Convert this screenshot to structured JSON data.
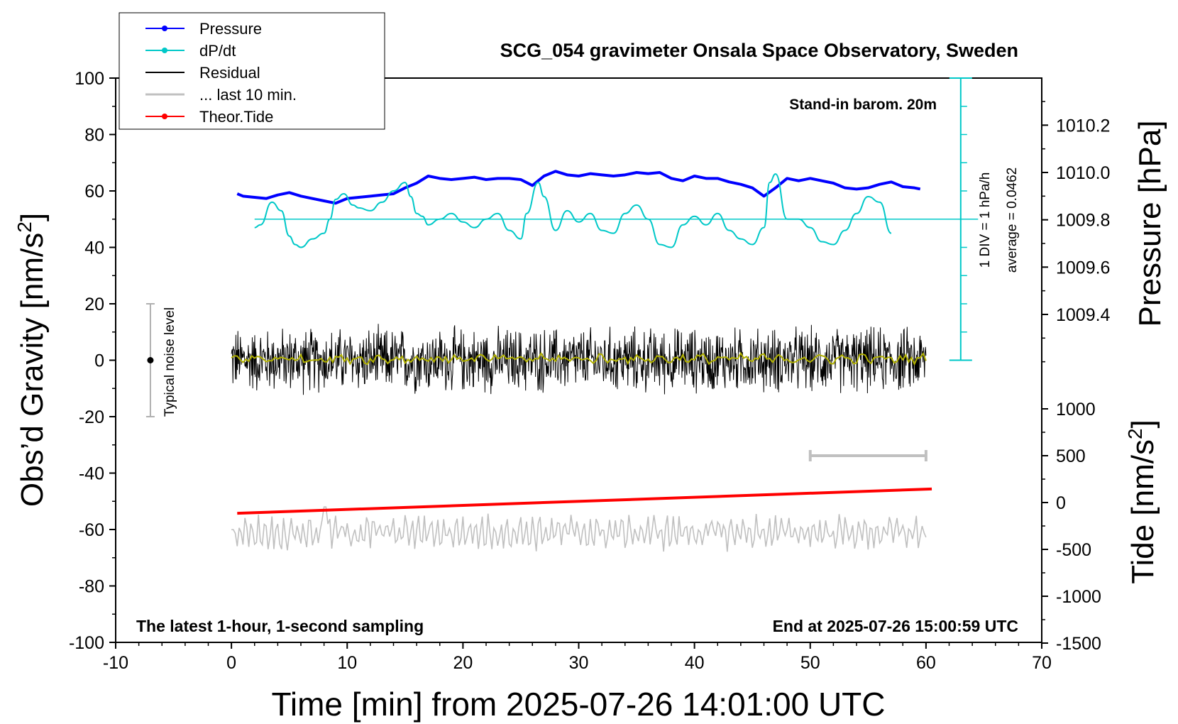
{
  "chart_data": {
    "type": "line",
    "title": "SCG_054 gravimeter Onsala Space Observatory, Sweden",
    "xlabel": "Time [min] from 2025-07-26 14:01:00 UTC",
    "ylabel_left": "Obs’d Gravity [nm/s",
    "ylabel_left_sup": "2",
    "ylabel_left_end": "]",
    "ylabel_right_top": "Pressure [hPa]",
    "ylabel_right_bottom": "Tide [nm/s",
    "ylabel_right_bottom_sup": "2",
    "ylabel_right_bottom_end": "]",
    "xlim": [
      -10,
      70
    ],
    "ylim_left": [
      -100,
      100
    ],
    "ylim_pressure": [
      1009.2,
      1010.4
    ],
    "ylim_tide": [
      -1500,
      1000
    ],
    "x_ticks": [
      "-10",
      "0",
      "10",
      "20",
      "30",
      "40",
      "50",
      "60",
      "70"
    ],
    "y_ticks_left": [
      "-100",
      "-80",
      "-60",
      "-40",
      "-20",
      "0",
      "20",
      "40",
      "60",
      "80",
      "100"
    ],
    "y_ticks_pressure": [
      "1009.4",
      "1009.6",
      "1009.8",
      "1010.0",
      "1010.2"
    ],
    "y_ticks_tide": [
      "-1500",
      "-1000",
      "-500",
      "0",
      "500",
      "1000"
    ],
    "legend_position": "top-left",
    "legend": [
      {
        "label": "Pressure",
        "color": "#0000ff",
        "marker": "dot"
      },
      {
        "label": "dP/dt",
        "color": "#00c8c8",
        "marker": "dot"
      },
      {
        "label": "Residual",
        "color": "#000000",
        "marker": "none"
      },
      {
        "label": "... last 10 min.",
        "color": "#c0c0c0",
        "marker": "none"
      },
      {
        "label": "Theor.Tide",
        "color": "#ff0000",
        "marker": "dot"
      }
    ],
    "annotations": {
      "barom": "Stand-in barom. 20m",
      "div": "1 DIV = 1 hPa/h",
      "average": "average = 0.0462",
      "noise": "Typical noise level",
      "latest": "The latest 1-hour, 1-second sampling",
      "end": "End at 2025-07-26 15:00:59 UTC"
    },
    "noise_level": {
      "x": -7,
      "center": 0,
      "half_range": 20
    },
    "last_10min_bar": {
      "x_start": 50,
      "x_end": 60
    },
    "dpdt_scale": {
      "x": 63,
      "zero_level": 50,
      "divisions": 10
    },
    "series": [
      {
        "name": "Pressure",
        "color": "#0000ff",
        "axis": "pressure",
        "x": [
          0.5,
          1,
          2,
          3,
          4,
          5,
          6,
          7,
          8,
          9,
          10,
          11,
          12,
          13,
          14,
          15,
          16,
          17,
          18,
          19,
          20,
          21,
          22,
          23,
          24,
          25,
          26,
          27,
          28,
          29,
          30,
          31,
          32,
          33,
          34,
          35,
          36,
          37,
          38,
          39,
          40,
          41,
          42,
          43,
          44,
          45,
          46,
          47,
          48,
          49,
          50,
          51,
          52,
          53,
          54,
          55,
          56,
          57,
          58,
          59,
          59.5
        ],
        "values": [
          1009.91,
          1009.9,
          1009.895,
          1009.89,
          1009.905,
          1009.915,
          1009.9,
          1009.89,
          1009.88,
          1009.87,
          1009.89,
          1009.895,
          1009.9,
          1009.905,
          1009.91,
          1009.935,
          1009.955,
          1009.985,
          1009.975,
          1009.97,
          1009.975,
          1009.98,
          1009.97,
          1009.975,
          1009.975,
          1009.97,
          1009.945,
          1009.985,
          1010.005,
          1009.99,
          1009.985,
          1009.995,
          1009.99,
          1009.985,
          1009.99,
          1010.0,
          1009.995,
          1010.0,
          1009.975,
          1009.965,
          1009.985,
          1009.975,
          1009.975,
          1009.96,
          1009.95,
          1009.935,
          1009.9,
          1009.935,
          1009.975,
          1009.965,
          1009.975,
          1009.965,
          1009.955,
          1009.935,
          1009.93,
          1009.935,
          1009.95,
          1009.96,
          1009.94,
          1009.935,
          1009.93
        ]
      },
      {
        "name": "dP/dt",
        "color": "#00c8c8",
        "axis": "left",
        "x": [
          2,
          2.5,
          3.5,
          4.3,
          5,
          5.5,
          6,
          7,
          8,
          8.5,
          9,
          9.7,
          10.5,
          11,
          12,
          13,
          14,
          15,
          15.5,
          16,
          16.5,
          17,
          18,
          19,
          20,
          21,
          22,
          23,
          24,
          25,
          25.5,
          26.5,
          27,
          28,
          29,
          30,
          31,
          32,
          33,
          34,
          35,
          36,
          37,
          38,
          39,
          40,
          41,
          42,
          43,
          44,
          45,
          46,
          46.5,
          47,
          48,
          49,
          50,
          51,
          52,
          53,
          54,
          55,
          56,
          57
        ],
        "values": [
          47,
          48,
          56,
          53,
          44,
          41,
          40,
          43,
          45,
          50,
          57,
          59,
          55,
          54,
          53,
          56,
          60,
          63,
          58,
          52,
          51,
          48,
          50,
          52,
          49,
          47,
          50,
          52,
          46,
          43,
          52,
          63,
          58,
          46,
          53,
          49,
          52,
          46,
          45,
          52,
          55,
          50,
          41,
          40,
          48,
          51,
          48,
          52,
          46,
          43,
          41,
          47,
          63,
          66,
          50,
          50,
          47,
          42,
          41,
          46,
          52,
          58,
          56,
          45
        ]
      },
      {
        "name": "Residual",
        "color": "#000000",
        "axis": "left",
        "x_start": 0,
        "x_end": 60,
        "n": 1400,
        "amplitude": 9,
        "baseline": 0
      },
      {
        "name": "Residual (smoothed)",
        "color": "#b0b000",
        "axis": "left",
        "x_start": 0,
        "x_end": 60,
        "n": 240,
        "amplitude": 2.5,
        "baseline": 0.5
      },
      {
        "name": "... last 10 min.",
        "color": "#c0c0c0",
        "axis": "left",
        "x_start": 0,
        "x_end": 60,
        "n": 360,
        "baseline": -61,
        "amplitude": 5
      },
      {
        "name": "Theor.Tide",
        "color": "#ff0000",
        "axis": "tide",
        "x": [
          0.5,
          60.5
        ],
        "values": [
          -115,
          145
        ]
      }
    ]
  }
}
